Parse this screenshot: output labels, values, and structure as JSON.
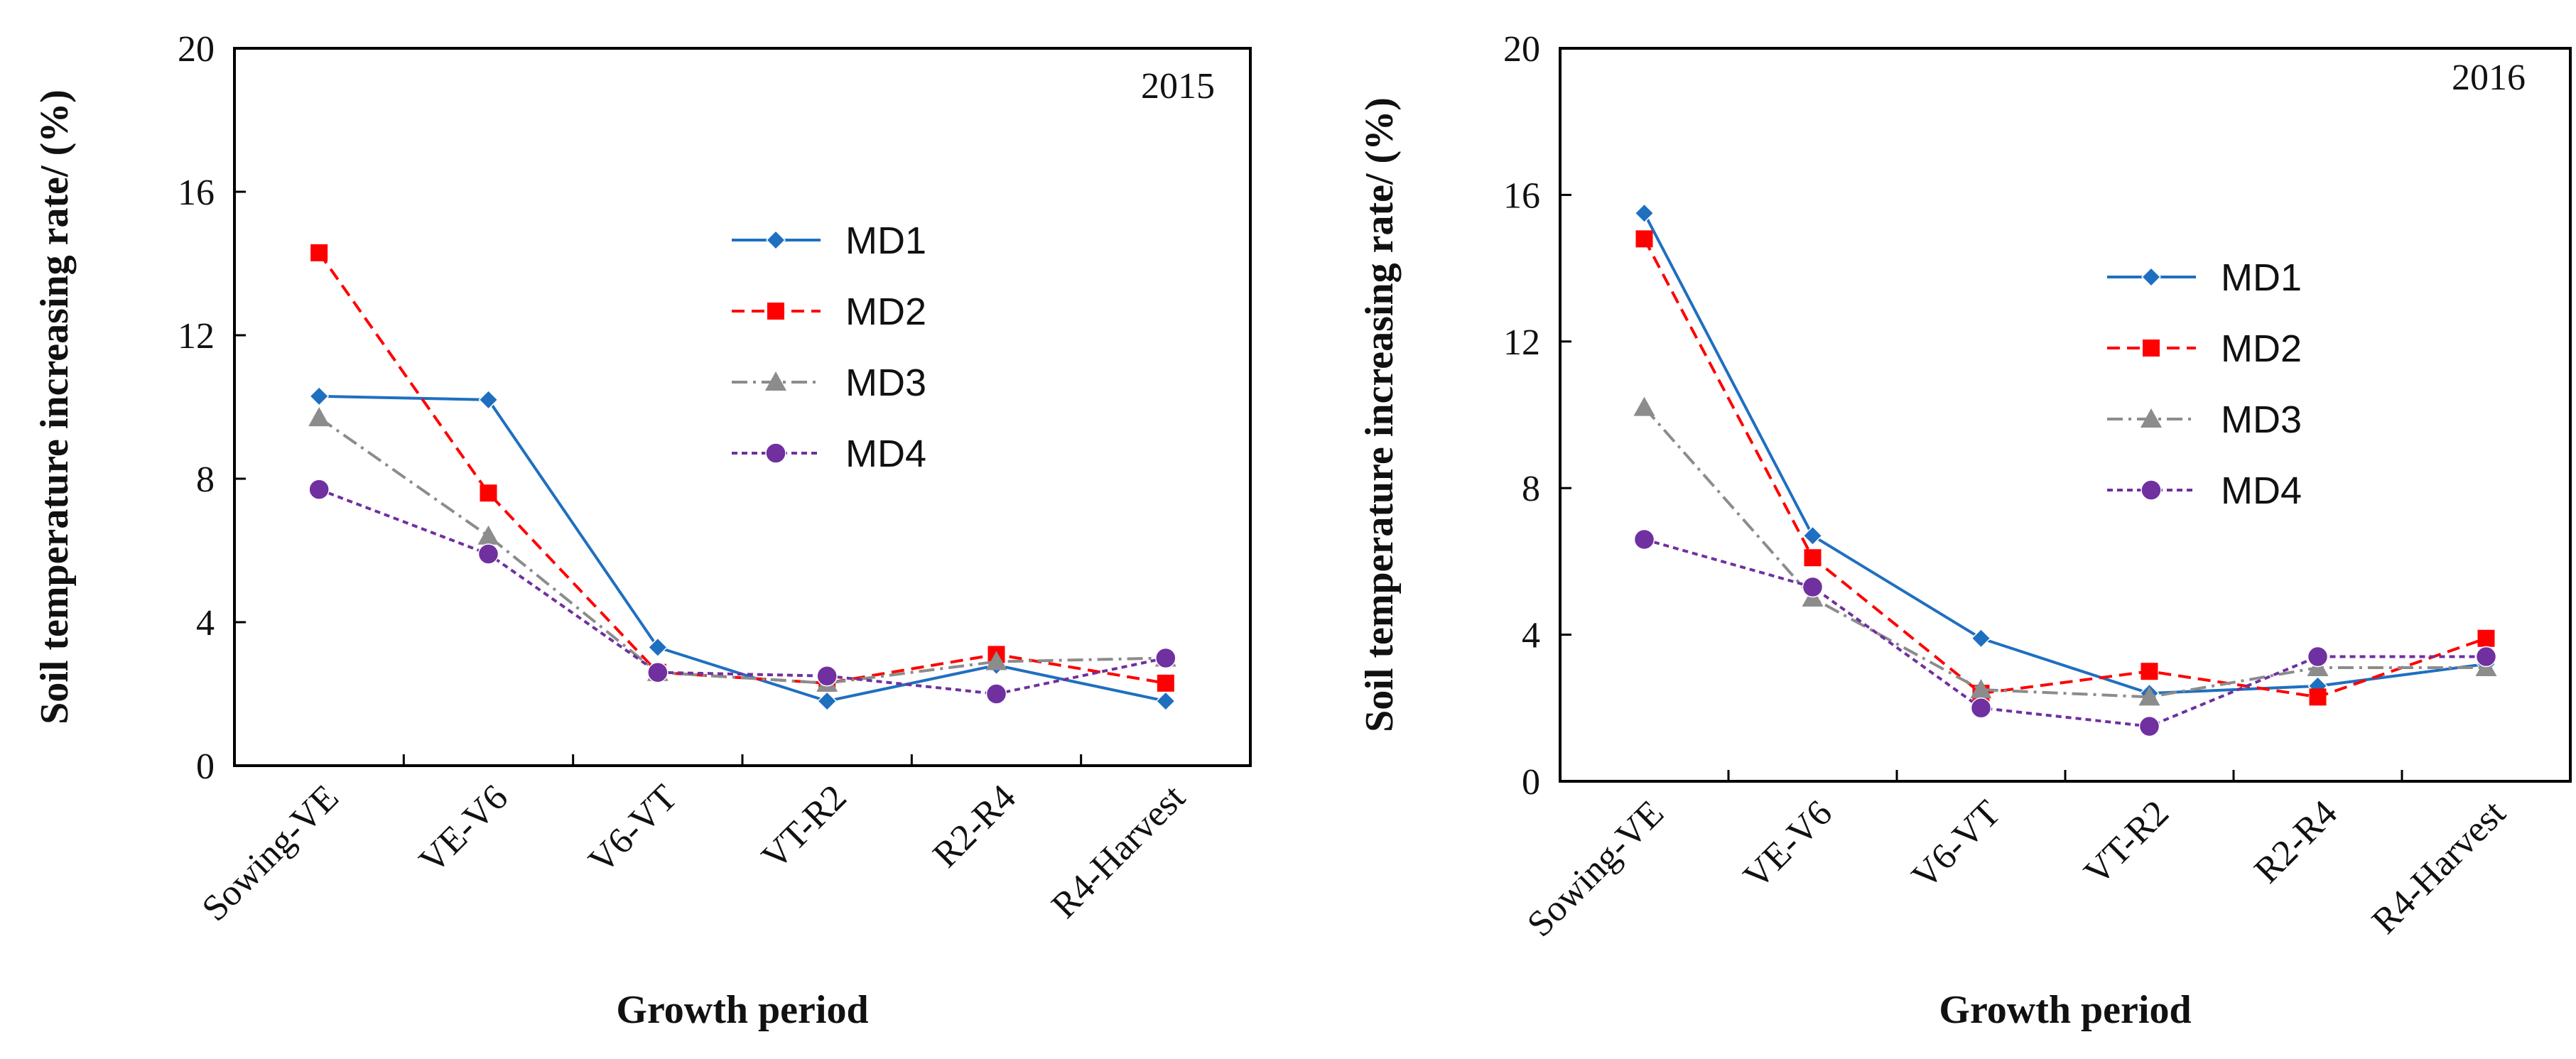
{
  "chart_data": [
    {
      "type": "line",
      "title": "2015",
      "xlabel": "Growth period",
      "ylabel": "Soil temperature increasing rate/ (%)",
      "ylim": [
        0,
        20
      ],
      "yticks": [
        "0",
        "4",
        "8",
        "12",
        "16",
        "20"
      ],
      "categories": [
        "Sowing-VE",
        "VE-V6",
        "V6-VT",
        "VT-R2",
        "R2-R4",
        "R4-Harvest"
      ],
      "legend_position": "upper-right",
      "series": [
        {
          "name": "MD1",
          "values": [
            10.3,
            10.2,
            3.3,
            1.8,
            2.8,
            1.8
          ]
        },
        {
          "name": "MD2",
          "values": [
            14.3,
            7.6,
            2.6,
            2.3,
            3.1,
            2.3
          ]
        },
        {
          "name": "MD3",
          "values": [
            9.7,
            6.4,
            2.6,
            2.3,
            2.9,
            3.0
          ]
        },
        {
          "name": "MD4",
          "values": [
            7.7,
            5.9,
            2.6,
            2.5,
            2.0,
            3.0
          ]
        }
      ]
    },
    {
      "type": "line",
      "title": "2016",
      "xlabel": "Growth period",
      "ylabel": "Soil temperature increasing rate/ (%)",
      "ylim": [
        0,
        20
      ],
      "yticks": [
        "0",
        "4",
        "8",
        "12",
        "16",
        "20"
      ],
      "categories": [
        "Sowing-VE",
        "VE-V6",
        "V6-VT",
        "VT-R2",
        "R2-R4",
        "R4-Harvest"
      ],
      "legend_position": "upper-right",
      "series": [
        {
          "name": "MD1",
          "values": [
            15.5,
            6.7,
            3.9,
            2.4,
            2.6,
            3.2
          ]
        },
        {
          "name": "MD2",
          "values": [
            14.8,
            6.1,
            2.4,
            3.0,
            2.3,
            3.9
          ]
        },
        {
          "name": "MD3",
          "values": [
            10.2,
            5.0,
            2.5,
            2.3,
            3.1,
            3.1
          ]
        },
        {
          "name": "MD4",
          "values": [
            6.6,
            5.3,
            2.0,
            1.5,
            3.4,
            3.4
          ]
        }
      ]
    }
  ],
  "series_styles": [
    {
      "name": "MD1",
      "color": "#1f6fc0",
      "dash": "solid",
      "marker": "diamond"
    },
    {
      "name": "MD2",
      "color": "#ff0000",
      "dash": "dashed",
      "marker": "square"
    },
    {
      "name": "MD3",
      "color": "#8c8c8c",
      "dash": "dashdot",
      "marker": "triangle"
    },
    {
      "name": "MD4",
      "color": "#7030a0",
      "dash": "dotted",
      "marker": "circle"
    }
  ]
}
